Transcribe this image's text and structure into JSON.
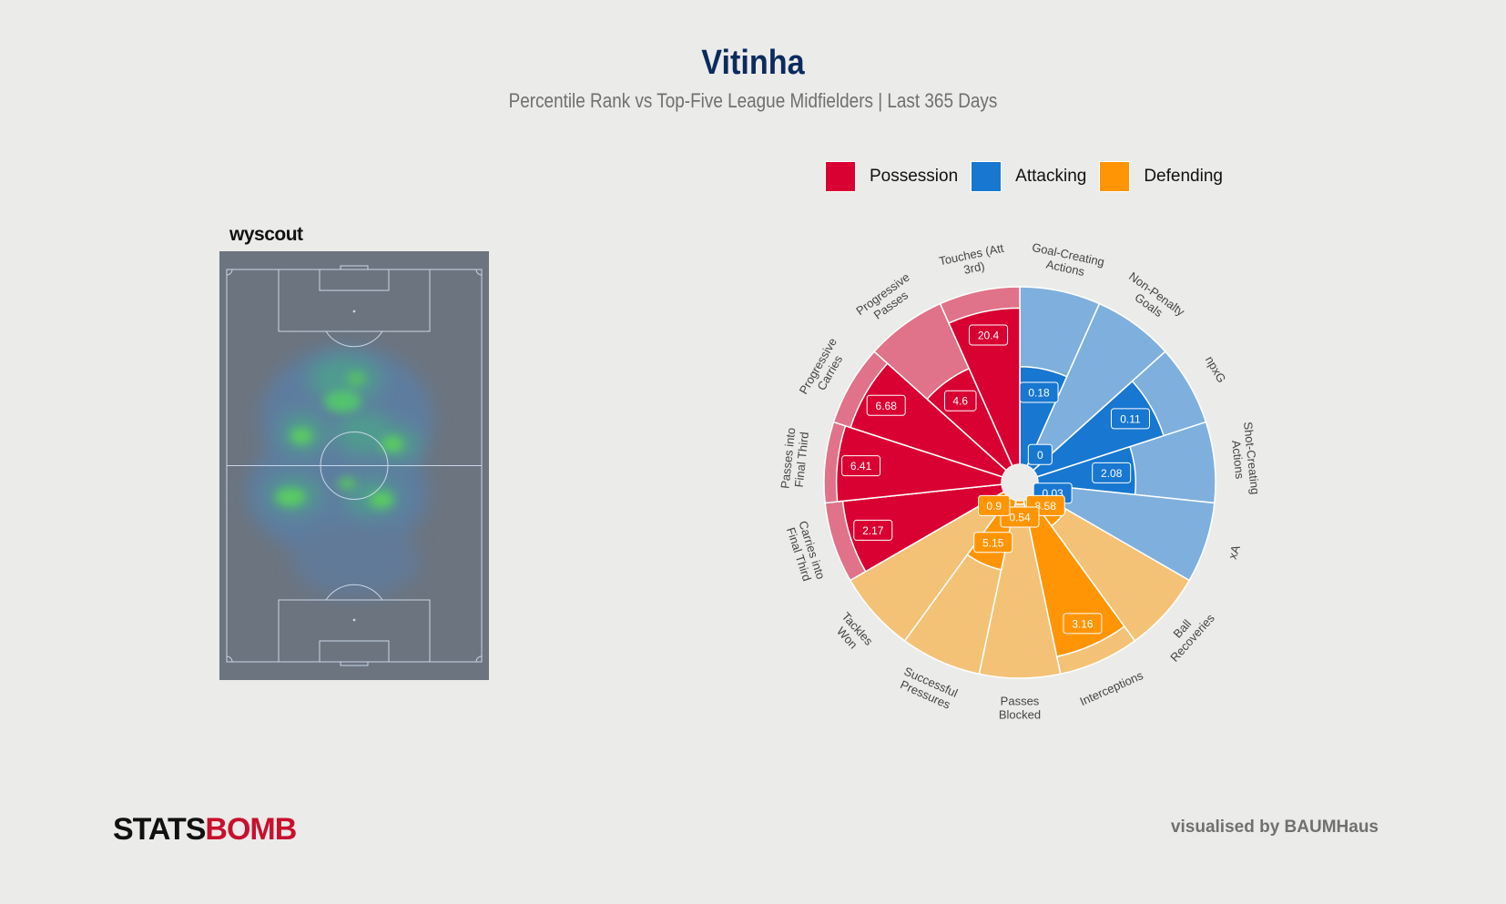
{
  "title": "Vitinha",
  "subtitle": "Percentile Rank vs Top-Five League Midfielders  |  Last 365 Days",
  "legend": [
    {
      "label": "Possession",
      "color": "#d90032"
    },
    {
      "label": "Attacking",
      "color": "#1877d0"
    },
    {
      "label": "Defending",
      "color": "#ff9505"
    }
  ],
  "heatmap_brand": "wyscout",
  "footer": {
    "logo_part1": "STATS",
    "logo_part2": "BOMB",
    "credit": "visualised by BAUMHaus"
  },
  "chart_data": {
    "type": "radar",
    "title": "Vitinha",
    "subtitle": "Percentile Rank vs Top-Five League Midfielders  |  Last 365 Days",
    "categories": {
      "Possession": {
        "color": "#d90032",
        "light": "#e07389"
      },
      "Attacking": {
        "color": "#1877d0",
        "light": "#7fb0dd"
      },
      "Defending": {
        "color": "#ff9505",
        "light": "#f4c277"
      }
    },
    "percentile_max": 100,
    "metrics": [
      {
        "label": "Goal-Creating Actions",
        "category": "Attacking",
        "value": "0.18",
        "percentile": 55
      },
      {
        "label": "Non-Penalty Goals",
        "category": "Attacking",
        "value": "0",
        "percentile": 10
      },
      {
        "label": "npxG",
        "category": "Attacking",
        "value": "0.11",
        "percentile": 75
      },
      {
        "label": "Shot-Creating Actions",
        "category": "Attacking",
        "value": "2.08",
        "percentile": 55
      },
      {
        "label": "xA",
        "category": "Attacking",
        "value": "0.03",
        "percentile": 10
      },
      {
        "label": "Ball Recoveries",
        "category": "Defending",
        "value": "8.58",
        "percentile": 20
      },
      {
        "label": "Interceptions",
        "category": "Defending",
        "value": "3.16",
        "percentile": 90
      },
      {
        "label": "Passes Blocked",
        "category": "Defending",
        "value": "0.54",
        "percentile": 2
      },
      {
        "label": "Successful Pressures",
        "category": "Defending",
        "value": "5.15",
        "percentile": 40
      },
      {
        "label": "Tackles Won",
        "category": "Defending",
        "value": "0.9",
        "percentile": 5
      },
      {
        "label": "Carries into Final Third",
        "category": "Possession",
        "value": "2.17",
        "percentile": 90
      },
      {
        "label": "Passes into Final Third",
        "category": "Possession",
        "value": "6.41",
        "percentile": 93
      },
      {
        "label": "Progressive Carries",
        "category": "Possession",
        "value": "6.68",
        "percentile": 90
      },
      {
        "label": "Progressive Passes",
        "category": "Possession",
        "value": "4.6",
        "percentile": 60
      },
      {
        "label": "Touches (Att 3rd)",
        "category": "Possession",
        "value": "20.4",
        "percentile": 88
      }
    ]
  }
}
